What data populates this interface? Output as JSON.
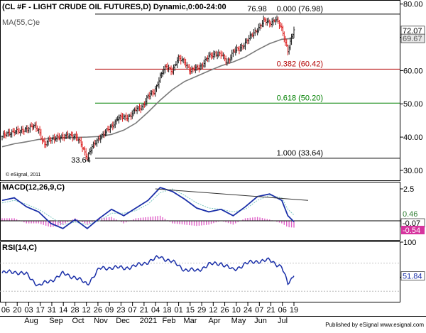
{
  "chart_data": {
    "type": "line",
    "title": "(CL #F - LIGHT CRUDE OIL FUTURES,D) Dynamic,0:00-24:00",
    "panels": {
      "price": {
        "ma_label": "MA(55,C)e",
        "ylim": [
          27,
          81
        ],
        "yticks": [
          30,
          40,
          50,
          60,
          70,
          80
        ],
        "copyright": "© eSignal, 2011",
        "price_tags": [
          {
            "value": 72.07,
            "label": "72.07",
            "bg": "#ffffff",
            "fg": "#000000"
          },
          {
            "value": 69.67,
            "label": "69.67",
            "bg": "#e6e6e6",
            "fg": "#555555"
          }
        ],
        "fib_levels": [
          {
            "value": 76.98,
            "label": "0.000 (76.98)",
            "color": "#000000"
          },
          {
            "value": 60.42,
            "label": "0.382 (60.42)",
            "color": "#b30000"
          },
          {
            "value": 50.2,
            "label": "0.618 (50.20)",
            "color": "#008000"
          },
          {
            "value": 33.64,
            "label": "1.000 (33.64)",
            "color": "#000000"
          }
        ],
        "annotations": [
          {
            "text": "76.98",
            "value": 76.98
          },
          {
            "text": "33.64",
            "value": 33.64
          }
        ],
        "close_series": [
          [
            0,
            40.2
          ],
          [
            5,
            40.9
          ],
          [
            10,
            42.1
          ],
          [
            15,
            41.4
          ],
          [
            20,
            42.6
          ],
          [
            25,
            43.3
          ],
          [
            30,
            42.1
          ],
          [
            35,
            37.8
          ],
          [
            40,
            39.1
          ],
          [
            45,
            40.3
          ],
          [
            50,
            39.6
          ],
          [
            55,
            40.9
          ],
          [
            60,
            40.1
          ],
          [
            65,
            37.9
          ],
          [
            70,
            34.1
          ],
          [
            75,
            37.4
          ],
          [
            80,
            40.1
          ],
          [
            85,
            41.2
          ],
          [
            90,
            43.4
          ],
          [
            95,
            45.6
          ],
          [
            100,
            45.9
          ],
          [
            105,
            46.4
          ],
          [
            110,
            48.1
          ],
          [
            115,
            49.2
          ],
          [
            120,
            52.1
          ],
          [
            125,
            53.6
          ],
          [
            130,
            58.3
          ],
          [
            135,
            61.1
          ],
          [
            140,
            60.2
          ],
          [
            145,
            63.4
          ],
          [
            150,
            62.9
          ],
          [
            155,
            59.7
          ],
          [
            160,
            60.8
          ],
          [
            165,
            61.9
          ],
          [
            170,
            64.1
          ],
          [
            175,
            65.3
          ],
          [
            180,
            64.7
          ],
          [
            185,
            62.6
          ],
          [
            190,
            65.6
          ],
          [
            195,
            66.4
          ],
          [
            200,
            68.5
          ],
          [
            205,
            70.3
          ],
          [
            210,
            72.6
          ],
          [
            215,
            74.8
          ],
          [
            220,
            74.3
          ],
          [
            225,
            75.6
          ],
          [
            230,
            72.3
          ],
          [
            235,
            66.2
          ],
          [
            240,
            72.07
          ]
        ],
        "ma55_series": [
          [
            0,
            37.1
          ],
          [
            10,
            38.0
          ],
          [
            20,
            38.6
          ],
          [
            30,
            39.3
          ],
          [
            40,
            39.6
          ],
          [
            50,
            39.8
          ],
          [
            60,
            39.9
          ],
          [
            70,
            40.0
          ],
          [
            80,
            40.2
          ],
          [
            90,
            40.8
          ],
          [
            100,
            42.1
          ],
          [
            110,
            44.2
          ],
          [
            120,
            47.5
          ],
          [
            130,
            51.1
          ],
          [
            140,
            54.3
          ],
          [
            150,
            56.7
          ],
          [
            160,
            58.3
          ],
          [
            170,
            59.9
          ],
          [
            180,
            61.4
          ],
          [
            190,
            62.6
          ],
          [
            200,
            64.1
          ],
          [
            210,
            66.2
          ],
          [
            220,
            68.1
          ],
          [
            230,
            69.4
          ],
          [
            240,
            69.67
          ]
        ]
      },
      "macd": {
        "label": "MACD(12,26,9,C)",
        "ylim": [
          -1.5,
          3.0
        ],
        "yticks": [
          0,
          2.5
        ],
        "ytick_labels": [
          "0",
          "2.5"
        ],
        "values_shown": [
          {
            "value": 0.46,
            "label": "0.46",
            "bg": "#ffffff",
            "fg": "#2e7d32"
          },
          {
            "value": -0.07,
            "label": "-0.07",
            "bg": "#ffffff",
            "fg": "#000000"
          },
          {
            "value": -0.54,
            "label": "-0.54",
            "bg": "#d6339e",
            "fg": "#ffffff"
          }
        ],
        "macd_series": [
          [
            0,
            1.6
          ],
          [
            10,
            1.8
          ],
          [
            20,
            1.1
          ],
          [
            30,
            0.7
          ],
          [
            40,
            -0.2
          ],
          [
            50,
            -0.6
          ],
          [
            60,
            0.1
          ],
          [
            70,
            -0.6
          ],
          [
            80,
            0.2
          ],
          [
            90,
            0.9
          ],
          [
            100,
            0.4
          ],
          [
            110,
            1.0
          ],
          [
            120,
            1.6
          ],
          [
            130,
            2.6
          ],
          [
            140,
            2.3
          ],
          [
            150,
            1.7
          ],
          [
            160,
            1.0
          ],
          [
            170,
            0.7
          ],
          [
            180,
            0.9
          ],
          [
            190,
            0.4
          ],
          [
            200,
            1.1
          ],
          [
            210,
            1.9
          ],
          [
            220,
            2.1
          ],
          [
            230,
            1.6
          ],
          [
            235,
            0.4
          ],
          [
            240,
            -0.07
          ]
        ],
        "signal_series": [
          [
            0,
            1.4
          ],
          [
            10,
            1.6
          ],
          [
            20,
            1.3
          ],
          [
            30,
            0.9
          ],
          [
            40,
            0.3
          ],
          [
            50,
            -0.3
          ],
          [
            60,
            -0.1
          ],
          [
            70,
            -0.3
          ],
          [
            80,
            0.0
          ],
          [
            90,
            0.6
          ],
          [
            100,
            0.6
          ],
          [
            110,
            0.8
          ],
          [
            120,
            1.3
          ],
          [
            130,
            2.2
          ],
          [
            140,
            2.5
          ],
          [
            150,
            2.0
          ],
          [
            160,
            1.4
          ],
          [
            170,
            1.0
          ],
          [
            180,
            0.9
          ],
          [
            190,
            0.7
          ],
          [
            200,
            0.9
          ],
          [
            210,
            1.6
          ],
          [
            220,
            2.0
          ],
          [
            230,
            1.8
          ],
          [
            235,
            0.9
          ],
          [
            240,
            0.46
          ]
        ],
        "trendline": [
          [
            126,
            2.5
          ],
          [
            230,
            1.7
          ]
        ]
      },
      "rsi": {
        "label": "RSI(14,C)",
        "ylim": [
          15,
          100
        ],
        "yticks": [
          50,
          100
        ],
        "ref_levels": [
          30,
          70
        ],
        "value_label": "51.84",
        "series": [
          [
            0,
            56
          ],
          [
            10,
            58
          ],
          [
            20,
            54
          ],
          [
            30,
            38
          ],
          [
            40,
            45
          ],
          [
            50,
            55
          ],
          [
            60,
            50
          ],
          [
            70,
            40
          ],
          [
            80,
            62
          ],
          [
            90,
            64
          ],
          [
            100,
            63
          ],
          [
            110,
            66
          ],
          [
            120,
            72
          ],
          [
            130,
            79
          ],
          [
            140,
            72
          ],
          [
            150,
            61
          ],
          [
            160,
            59
          ],
          [
            170,
            68
          ],
          [
            180,
            70
          ],
          [
            190,
            60
          ],
          [
            200,
            69
          ],
          [
            210,
            73
          ],
          [
            220,
            74
          ],
          [
            230,
            65
          ],
          [
            235,
            40
          ],
          [
            240,
            51.84
          ]
        ]
      }
    },
    "x_axis": {
      "tick_labels": [
        "06",
        "20",
        "03",
        "17",
        "31",
        "14",
        "28",
        "12",
        "26",
        "09",
        "23",
        "07",
        "21",
        "04",
        "18",
        "01",
        "15",
        "29",
        "12",
        "26",
        "10",
        "24",
        "07",
        "21",
        "06",
        "19"
      ],
      "month_labels": [
        "Aug",
        "Sep",
        "Oct",
        "Nov",
        "Dec",
        "2021",
        "Feb",
        "Mar",
        "Apr",
        "May",
        "Jun",
        "Jul"
      ]
    },
    "footer": "Published by eSignal    www.esignal.com"
  }
}
